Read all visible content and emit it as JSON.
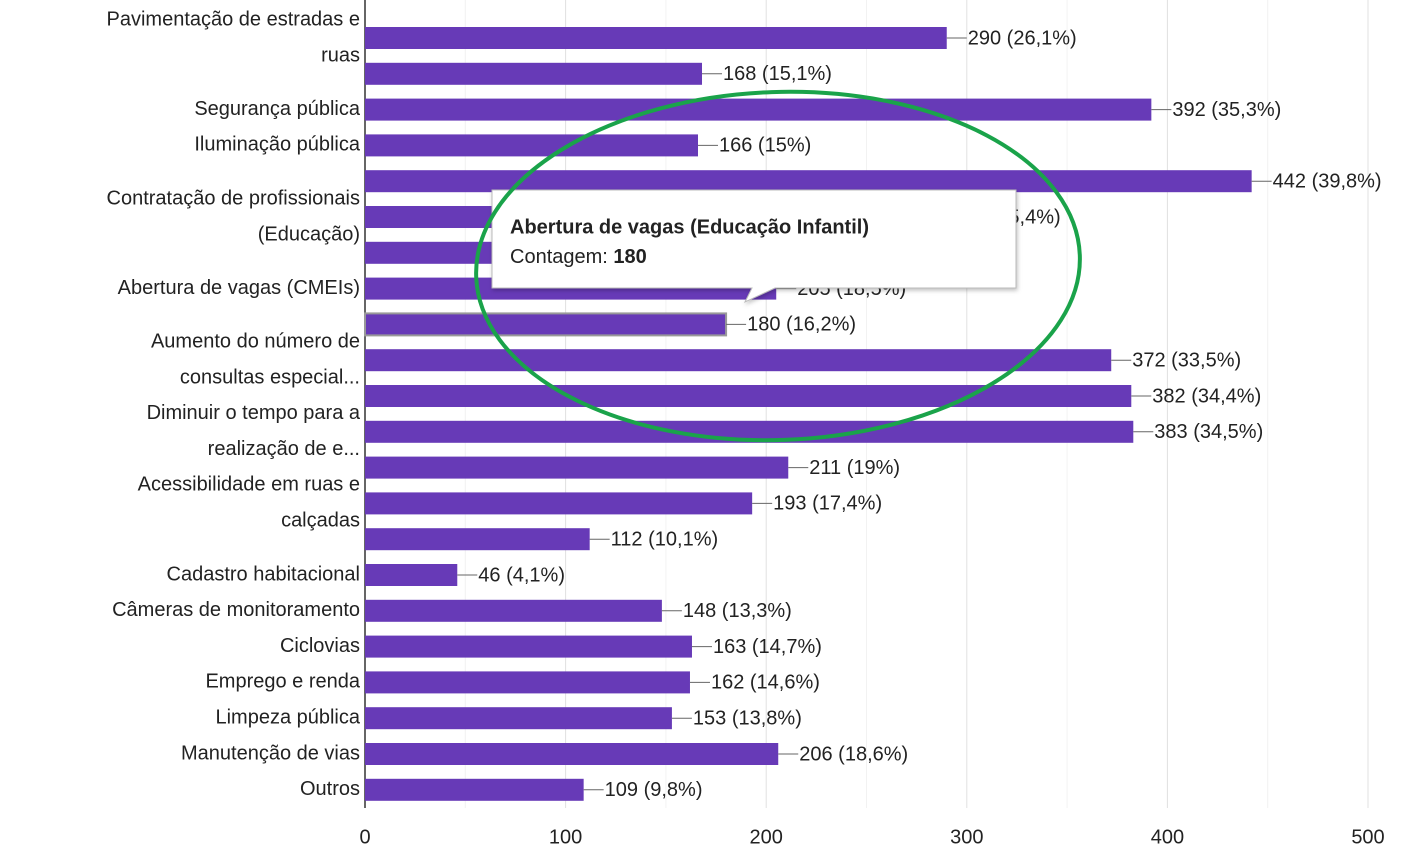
{
  "chart_data": {
    "type": "hbar",
    "categories": [
      [
        "Pavimentação de estradas e",
        "ruas"
      ],
      null,
      "Segurança pública",
      "Iluminação pública",
      null,
      [
        "Contratação de profissionais",
        "(Educação)"
      ],
      null,
      "Abertura de vagas (CMEIs)",
      null,
      [
        "Aumento do número de",
        "consultas especial..."
      ],
      null,
      [
        "Diminuir o tempo para a",
        "realização de e..."
      ],
      null,
      [
        "Acessibilidade em ruas e",
        "calçadas"
      ],
      null,
      "Cadastro habitacional",
      "Câmeras de monitoramento",
      "Ciclovias",
      "Emprego e renda",
      "Limpeza pública",
      "Manutenção de vias",
      "Outros"
    ],
    "values": [
      290,
      168,
      392,
      166,
      442,
      282,
      230,
      205,
      180,
      372,
      382,
      383,
      211,
      193,
      112,
      46,
      148,
      163,
      162,
      153,
      206,
      109
    ],
    "value_labels": [
      "290 (26,1%)",
      "168 (15,1%)",
      "392 (35,3%)",
      "166 (15%)",
      "442 (39,8%)",
      "282 (25,4%)",
      null,
      "205 (18,5%)",
      "180 (16,2%)",
      "372 (33,5%)",
      "382 (34,4%)",
      "383 (34,5%)",
      "211 (19%)",
      "193 (17,4%)",
      "112 (10,1%)",
      "46 (4,1%)",
      "148 (13,3%)",
      "163 (14,7%)",
      "162 (14,6%)",
      "153 (13,8%)",
      "206 (18,6%)",
      "109 (9,8%)"
    ],
    "color": "#673ab7",
    "xlim": [
      0,
      500
    ],
    "xticks": [
      0,
      100,
      200,
      300,
      400,
      500
    ],
    "minor_xticks": [
      50,
      150,
      250,
      350,
      450
    ],
    "grid": true,
    "highlight": 8,
    "tooltip": {
      "title": "Abertura de vagas (Educação Infantil)",
      "label": "Contagem:"
    }
  }
}
